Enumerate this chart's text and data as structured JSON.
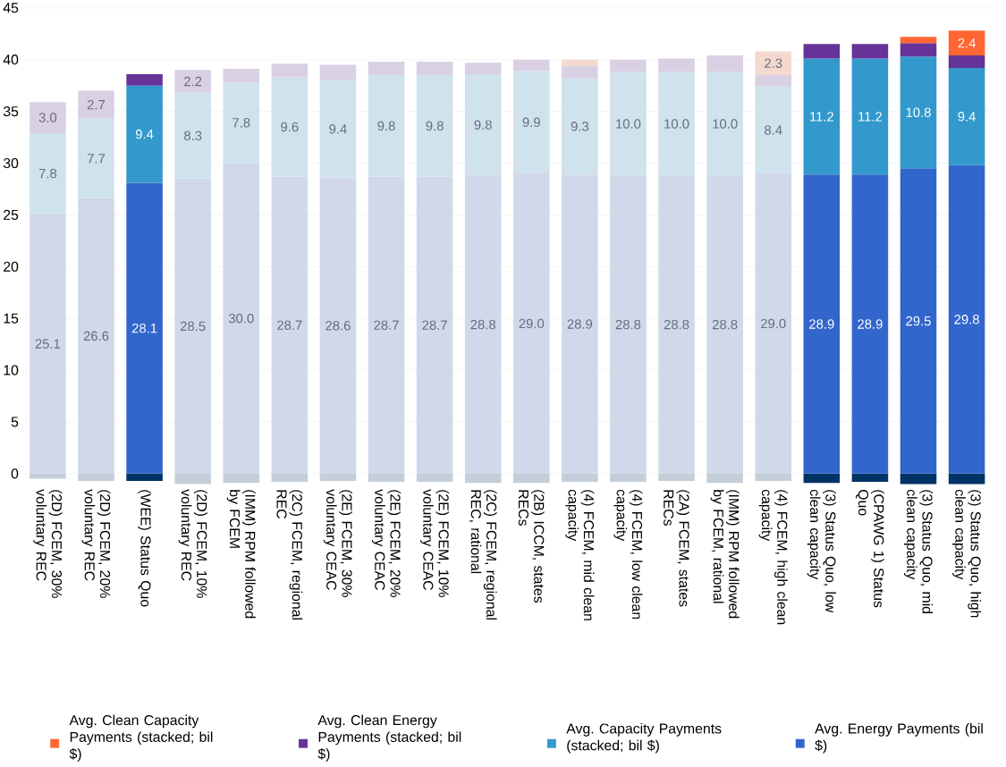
{
  "chart_data": {
    "type": "bar",
    "stacked": true,
    "categories": [
      "(2D) FCEM, 30% voluntary REC",
      "(2D) FCEM, 20% voluntary REC",
      "(WEE) Status Quo",
      "(2D) FCEM, 10% voluntary REC",
      "(IMM) RPM followed by FCEM",
      "(2C) FCEM, regional REC",
      "(2E) FCEM, 30% voluntary CEAC",
      "(2E) FCEM, 20% voluntary CEAC",
      "(2E) FCEM, 10% voluntary CEAC",
      "(2C) FCEM, regional REC, rational",
      "(2B) ICCM, states RECs",
      "(4) FCEM, mid clean capacity",
      "(4) FCEM, low clean capacity",
      "(2A) FCEM, states RECs",
      "(IMM) RPM followed by FCEM, rational",
      "(4) FCEM, high clean capacity",
      "(3) Status Quo, low clean capacity",
      "(CPAWG 1) Status Quo",
      "(3) Status Quo, mid clean capacity",
      "(3) Status Quo, high clean capacity"
    ],
    "series": [
      {
        "colors": [
          "#c5ced8",
          "#c5ced8",
          "#003366",
          "#c5ced8",
          "#c5ced8",
          "#c5ced8",
          "#c5ced8",
          "#c5ced8",
          "#c5ced8",
          "#c5ced8",
          "#c5ced8",
          "#c5ced8",
          "#c5ced8",
          "#c5ced8",
          "#c5ced8",
          "#c5ced8",
          "#003366",
          "#003366",
          "#003366",
          "#003366"
        ],
        "values": [
          -0.5,
          -0.7,
          -0.7,
          -1.0,
          -0.9,
          -0.8,
          -0.7,
          -0.8,
          -0.8,
          -0.9,
          -0.9,
          -0.8,
          -0.8,
          -0.7,
          -0.9,
          -0.7,
          -0.9,
          -0.8,
          -1.0,
          -1.0
        ]
      },
      {
        "name": "Avg. Energy Payments (bil $)",
        "color": "#3366cc",
        "colors": [
          "#d0d8ea",
          "#d0d8ea",
          "#3366cc",
          "#d0d8ea",
          "#d0d8ea",
          "#d0d8ea",
          "#d0d8ea",
          "#d0d8ea",
          "#d0d8ea",
          "#d0d8ea",
          "#d0d8ea",
          "#d0d8ea",
          "#d0d8ea",
          "#d0d8ea",
          "#d0d8ea",
          "#d0d8ea",
          "#3366cc",
          "#3366cc",
          "#3366cc",
          "#3366cc"
        ],
        "values": [
          25.1,
          26.6,
          28.1,
          28.5,
          30.0,
          28.7,
          28.6,
          28.7,
          28.7,
          28.8,
          29.0,
          28.9,
          28.8,
          28.8,
          28.8,
          29.0,
          28.9,
          28.9,
          29.5,
          29.8
        ],
        "value_labels": [
          "25.1",
          "26.6",
          "28.1",
          "28.5",
          "30.0",
          "28.7",
          "28.6",
          "28.7",
          "28.7",
          "28.8",
          "29.0",
          "28.9",
          "28.8",
          "28.8",
          "28.8",
          "29.0",
          "28.9",
          "28.9",
          "29.5",
          "29.8"
        ]
      },
      {
        "name": "Avg. Capacity Payments (stacked; bil $)",
        "color": "#3399cc",
        "colors": [
          "#d0e2ec",
          "#d0e2ec",
          "#3399cc",
          "#d0e2ec",
          "#d0e2ec",
          "#d0e2ec",
          "#d0e2ec",
          "#d0e2ec",
          "#d0e2ec",
          "#d0e2ec",
          "#d0e2ec",
          "#d0e2ec",
          "#d0e2ec",
          "#d0e2ec",
          "#d0e2ec",
          "#d0e2ec",
          "#3399cc",
          "#3399cc",
          "#3399cc",
          "#3399cc"
        ],
        "values": [
          7.8,
          7.7,
          9.4,
          8.3,
          7.8,
          9.6,
          9.4,
          9.8,
          9.8,
          9.8,
          9.9,
          9.3,
          10.0,
          10.0,
          10.0,
          8.4,
          11.2,
          11.2,
          10.8,
          9.4
        ],
        "value_labels": [
          "7.8",
          "7.7",
          "9.4",
          "8.3",
          "7.8",
          "9.6",
          "9.4",
          "9.8",
          "9.8",
          "9.8",
          "9.9",
          "9.3",
          "10.0",
          "10.0",
          "10.0",
          "8.4",
          "11.2",
          "11.2",
          "10.8",
          "9.4"
        ]
      },
      {
        "name": "Avg. Clean Energy Payments (stacked; bil $)",
        "color": "#663399",
        "colors": [
          "#d9d0e3",
          "#d9d0e3",
          "#663399",
          "#d9d0e3",
          "#d9d0e3",
          "#d9d0e3",
          "#d9d0e3",
          "#d9d0e3",
          "#d9d0e3",
          "#d9d0e3",
          "#d9d0e3",
          "#d9d0e3",
          "#d9d0e3",
          "#d9d0e3",
          "#d9d0e3",
          "#d9d0e3",
          "#663399",
          "#663399",
          "#663399",
          "#663399"
        ],
        "values": [
          3.0,
          2.7,
          1.1,
          2.2,
          1.3,
          1.3,
          1.5,
          1.3,
          1.3,
          1.1,
          1.1,
          1.2,
          1.2,
          1.3,
          1.6,
          1.1,
          1.4,
          1.4,
          1.3,
          1.2
        ],
        "value_labels": [
          "3.0",
          "2.7",
          null,
          "2.2",
          null,
          null,
          null,
          null,
          null,
          null,
          null,
          null,
          null,
          null,
          null,
          null,
          null,
          null,
          null,
          null
        ]
      },
      {
        "name": "Avg. Clean Capacity Payments (stacked; bil $)",
        "color": "#ff6633",
        "colors": [
          "#f5d9d0",
          "#f5d9d0",
          "#ff6633",
          "#f5d9d0",
          "#f5d9d0",
          "#f5d9d0",
          "#f5d9d0",
          "#f5d9d0",
          "#f5d9d0",
          "#f5d9d0",
          "#f5d9d0",
          "#f5d9d0",
          "#f5d9d0",
          "#f5d9d0",
          "#f5d9d0",
          "#f5d9d0",
          "#ff6633",
          "#ff6633",
          "#ff6633",
          "#ff6633"
        ],
        "values": [
          null,
          null,
          null,
          null,
          null,
          null,
          null,
          null,
          null,
          null,
          null,
          0.6,
          null,
          null,
          null,
          2.3,
          null,
          null,
          0.6,
          2.4
        ],
        "value_labels": [
          null,
          null,
          null,
          null,
          null,
          null,
          null,
          null,
          null,
          null,
          null,
          null,
          null,
          null,
          null,
          "2.3",
          null,
          null,
          null,
          "2.4"
        ]
      }
    ],
    "ylim": [
      -1.2,
      45
    ],
    "yticks": [
      0,
      5,
      10,
      15,
      20,
      25,
      30,
      35,
      40,
      45
    ],
    "grid": "y",
    "legend": "bottom"
  }
}
